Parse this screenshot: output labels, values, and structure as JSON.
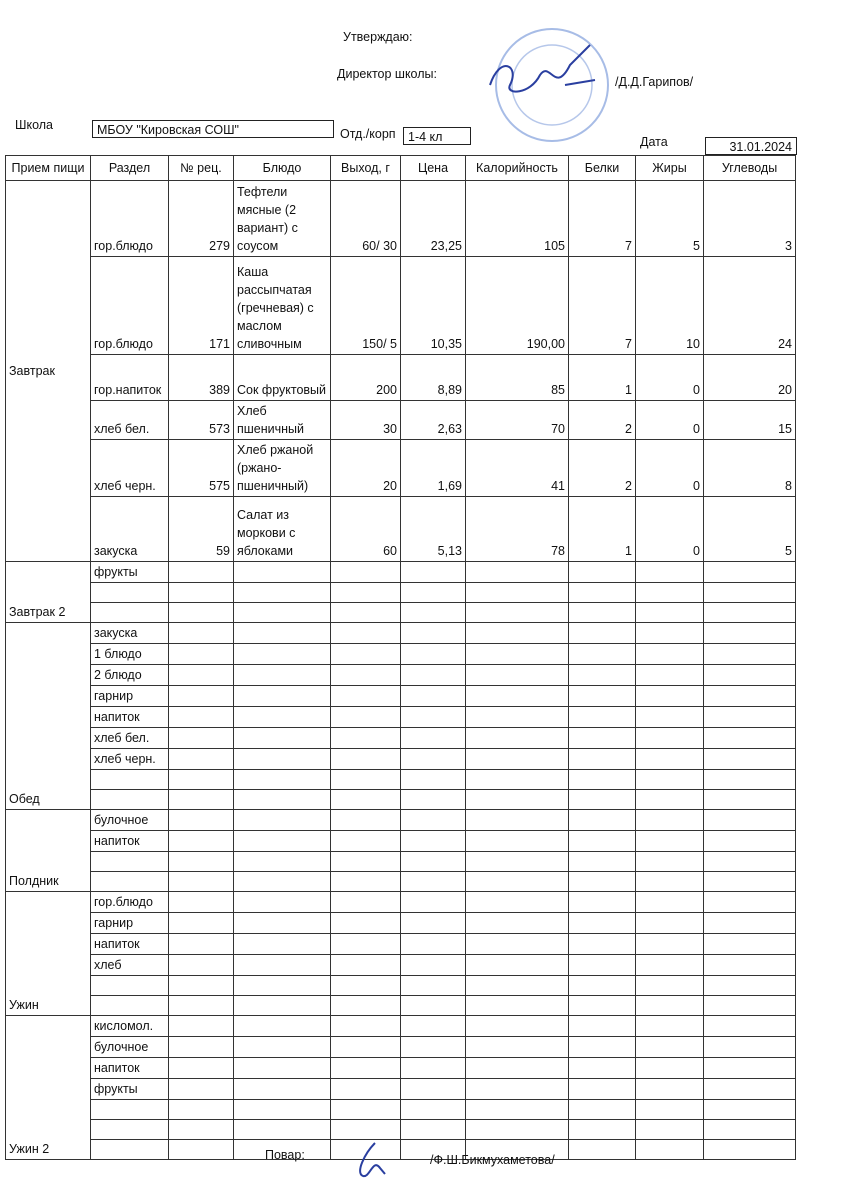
{
  "header": {
    "approve": "Утверждаю:",
    "director_label": "Директор школы:",
    "director_name": "/Д.Д.Гарипов/",
    "school_label": "Школа",
    "school": "МБОУ \"Кировская СОШ\"",
    "dept_label": "Отд./корп",
    "dept": "1-4 кл",
    "date_label": "Дата",
    "date": "31.01.2024"
  },
  "table": {
    "columns": [
      "Прием пищи",
      "Раздел",
      "№ рец.",
      "Блюдо",
      "Выход, г",
      "Цена",
      "Калорийность",
      "Белки",
      "Жиры",
      "Углеводы"
    ],
    "meals": [
      {
        "name": "Завтрак",
        "items": [
          {
            "section": "гор.блюдо",
            "recipe": "279",
            "dish": "Тефтели мясные (2 вариант) с соусом",
            "yield": "60/ 30",
            "price": "23,25",
            "kcal": "105",
            "protein": "7",
            "fat": "5",
            "carbs": "3"
          },
          {
            "section": "гор.блюдо",
            "recipe": "171",
            "dish": "Каша рассыпчатая (гречневая) с маслом сливочным",
            "yield": "150/ 5",
            "price": "10,35",
            "kcal": "190,00",
            "protein": "7",
            "fat": "10",
            "carbs": "24"
          },
          {
            "section": "гор.напиток",
            "recipe": "389",
            "dish": "Сок фруктовый",
            "yield": "200",
            "price": "8,89",
            "kcal": "85",
            "protein": "1",
            "fat": "0",
            "carbs": "20"
          },
          {
            "section": "хлеб бел.",
            "recipe": "573",
            "dish": "Хлеб пшеничный",
            "yield": "30",
            "price": "2,63",
            "kcal": "70",
            "protein": "2",
            "fat": "0",
            "carbs": "15"
          },
          {
            "section": "хлеб черн.",
            "recipe": "575",
            "dish": "Хлеб ржаной (ржано-пшеничный)",
            "yield": "20",
            "price": "1,69",
            "kcal": "41",
            "protein": "2",
            "fat": "0",
            "carbs": "8"
          },
          {
            "section": "закуска",
            "recipe": "59",
            "dish": "Салат из моркови с яблоками",
            "yield": "60",
            "price": "5,13",
            "kcal": "78",
            "protein": "1",
            "fat": "0",
            "carbs": "5"
          }
        ]
      },
      {
        "name": "Завтрак 2",
        "items": [
          {
            "section": "фрукты"
          }
        ]
      },
      {
        "name": "Обед",
        "items": [
          {
            "section": "закуска"
          },
          {
            "section": "1 блюдо"
          },
          {
            "section": "2 блюдо"
          },
          {
            "section": "гарнир"
          },
          {
            "section": "напиток"
          },
          {
            "section": "хлеб бел."
          },
          {
            "section": "хлеб черн."
          }
        ]
      },
      {
        "name": "Полдник",
        "items": [
          {
            "section": "булочное"
          },
          {
            "section": "напиток"
          }
        ]
      },
      {
        "name": "Ужин",
        "items": [
          {
            "section": "гор.блюдо"
          },
          {
            "section": "гарнир"
          },
          {
            "section": "напиток"
          },
          {
            "section": "хлеб"
          }
        ]
      },
      {
        "name": "Ужин 2",
        "items": [
          {
            "section": "кисломол."
          },
          {
            "section": "булочное"
          },
          {
            "section": "напиток"
          },
          {
            "section": "фрукты"
          }
        ]
      }
    ]
  },
  "footer": {
    "cook_label": "Повар:",
    "cook_name": "/Ф.Ш.Бикмухаметова/"
  }
}
